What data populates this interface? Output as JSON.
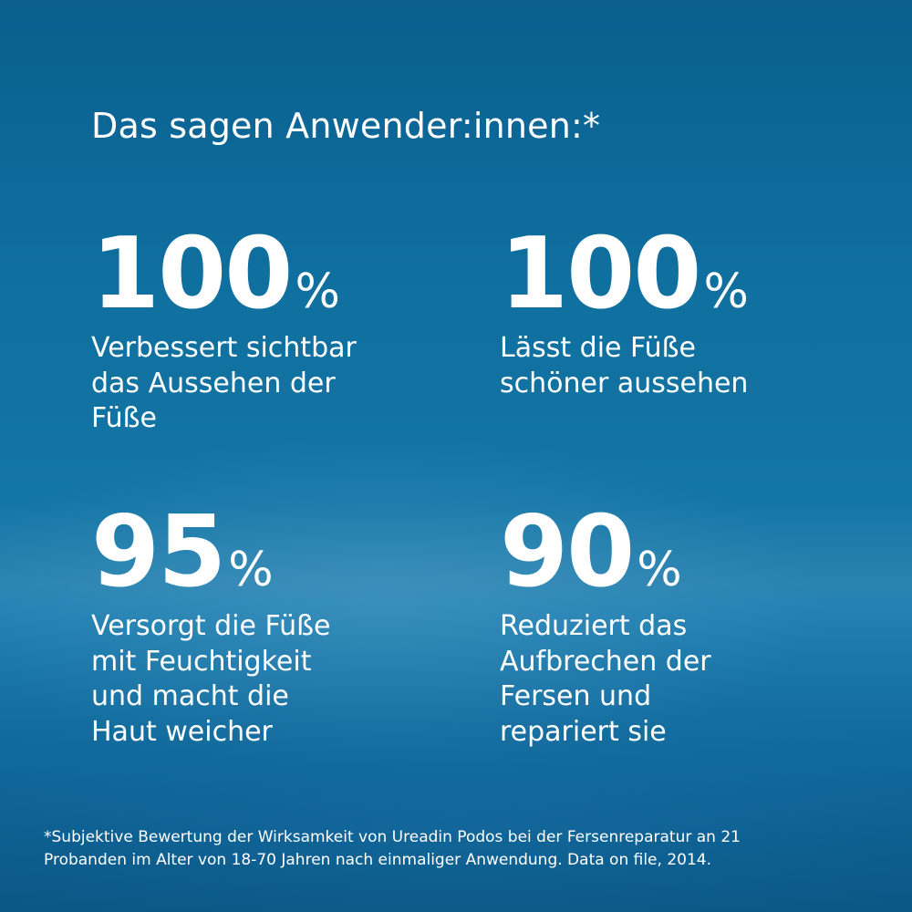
{
  "heading": "Das sagen Anwender:innen:*",
  "stats": [
    {
      "value": "100",
      "unit": "%",
      "lines": [
        "Verbessert sichtbar",
        "das Aussehen der",
        "Füße"
      ]
    },
    {
      "value": "100",
      "unit": "%",
      "lines": [
        "Lässt die Füße",
        "schöner aussehen"
      ]
    },
    {
      "value": "95",
      "unit": "%",
      "lines": [
        "Versorgt die Füße",
        "mit Feuchtigkeit",
        "und macht die",
        "Haut weicher"
      ]
    },
    {
      "value": "90",
      "unit": "%",
      "lines": [
        "Reduziert das",
        "Aufbrechen der",
        "Fersen und",
        "repariert sie"
      ]
    }
  ],
  "footnote": [
    "*Subjektive Bewertung der Wirksamkeit von Ureadin Podos bei der Fersenreparatur an 21",
    "Probanden im Alter von 18-70 Jahren nach einmaliger Anwendung. Data on file, 2014."
  ],
  "colors": {
    "background": "#1476a6",
    "text": "#ffffff"
  }
}
